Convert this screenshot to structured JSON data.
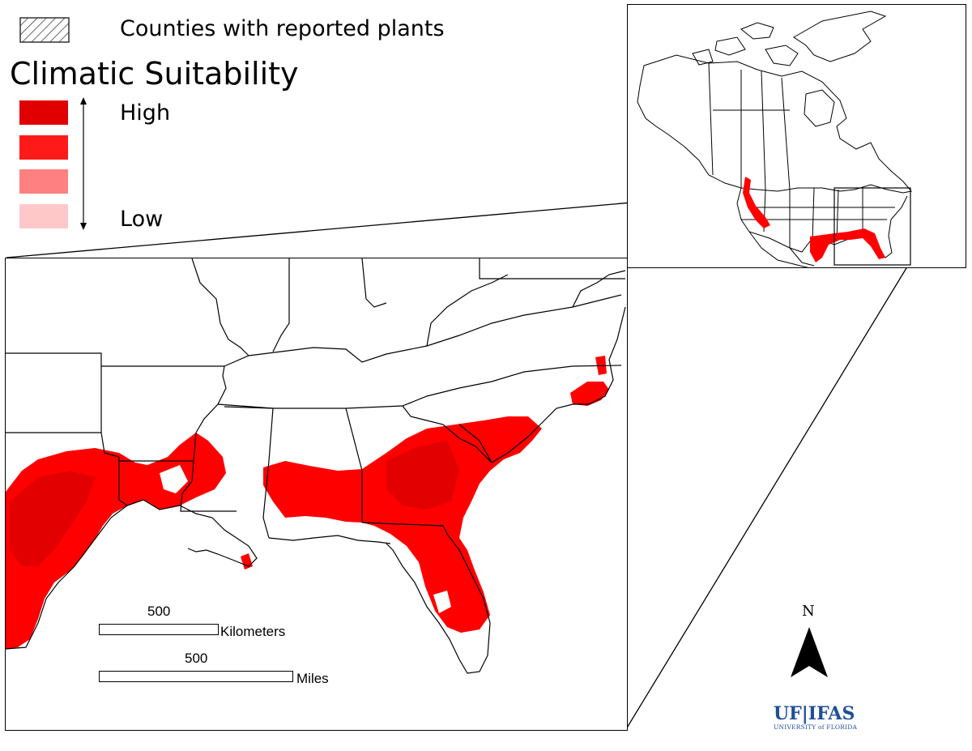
{
  "legend": {
    "hatch_label": "Counties with reported plants",
    "title": "Climatic Suitability",
    "high_label": "High",
    "low_label": "Low",
    "swatch_colors": [
      "#e00000",
      "#ff1a1a",
      "#ff8080",
      "#ffc8c8"
    ]
  },
  "scale": {
    "km_value": "500",
    "km_unit": "Kilometers",
    "mi_value": "500",
    "mi_unit": "Miles"
  },
  "north": {
    "label": "N"
  },
  "logo": {
    "text": "UF|IFAS",
    "subtitle": "UNIVERSITY of FLORIDA"
  },
  "colors": {
    "suitability": "#ff0000",
    "suitability_high": "#e00000",
    "border": "#000000",
    "logo": "#1f4e96"
  }
}
